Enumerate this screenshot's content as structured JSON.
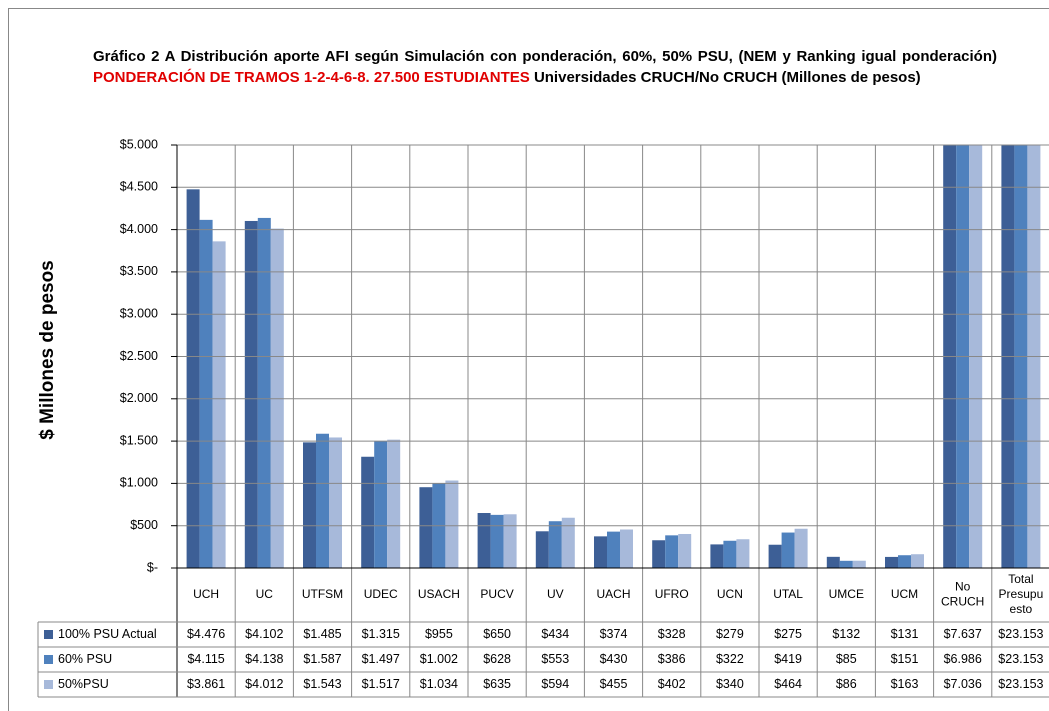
{
  "chart_data": {
    "type": "bar",
    "title": [
      "Gráfico 2 A Distribución aporte AFI según Simulación con ponderación, 60%, 50% PSU, (NEM y Ranking igual ponderación)",
      "PONDERACIÓN DE TRAMOS 1-2-4-6-8. 27.500 ESTUDIANTES",
      "Universidades CRUCH/No CRUCH (Millones de pesos)"
    ],
    "y_label": "$ Millones de pesos",
    "categories": [
      "UCH",
      "UC",
      "UTFSM",
      "UDEC",
      "USACH",
      "PUCV",
      "UV",
      "UACH",
      "UFRO",
      "UCN",
      "UTAL",
      "UMCE",
      "UCM",
      "No CRUCH",
      "Total Presupuesto"
    ],
    "series": [
      {
        "name": "100% PSU Actual",
        "color": "#3d5f96",
        "values": [
          4476,
          4102,
          1485,
          1315,
          955,
          650,
          434,
          374,
          328,
          279,
          275,
          132,
          131,
          7637,
          23153
        ],
        "value_labels": [
          "$4.476",
          "$4.102",
          "$1.485",
          "$1.315",
          "$955",
          "$650",
          "$434",
          "$374",
          "$328",
          "$279",
          "$275",
          "$132",
          "$131",
          "$7.637",
          "$23.153"
        ]
      },
      {
        "name": "60% PSU",
        "color": "#4f81bd",
        "values": [
          4115,
          4138,
          1587,
          1497,
          1002,
          628,
          553,
          430,
          386,
          322,
          419,
          85,
          151,
          6986,
          23153
        ],
        "value_labels": [
          "$4.115",
          "$4.138",
          "$1.587",
          "$1.497",
          "$1.002",
          "$628",
          "$553",
          "$430",
          "$386",
          "$322",
          "$419",
          "$85",
          "$151",
          "$6.986",
          "$23.153"
        ]
      },
      {
        "name": "50%PSU",
        "color": "#a7b9da",
        "values": [
          3861,
          4012,
          1543,
          1517,
          1034,
          635,
          594,
          455,
          402,
          340,
          464,
          86,
          163,
          7036,
          23153
        ],
        "value_labels": [
          "$3.861",
          "$4.012",
          "$1.543",
          "$1.517",
          "$1.034",
          "$635",
          "$594",
          "$455",
          "$402",
          "$340",
          "$464",
          "$86",
          "$163",
          "$7.036",
          "$23.153"
        ]
      }
    ],
    "ylim": [
      0,
      5000
    ],
    "yticks": [
      {
        "value": 0,
        "label": "$-"
      },
      {
        "value": 500,
        "label": "$500"
      },
      {
        "value": 1000,
        "label": "$1.000"
      },
      {
        "value": 1500,
        "label": "$1.500"
      },
      {
        "value": 2000,
        "label": "$2.000"
      },
      {
        "value": 2500,
        "label": "$2.500"
      },
      {
        "value": 3000,
        "label": "$3.000"
      },
      {
        "value": 3500,
        "label": "$3.500"
      },
      {
        "value": 4000,
        "label": "$4.000"
      },
      {
        "value": 4500,
        "label": "$4.500"
      },
      {
        "value": 5000,
        "label": "$5.000"
      }
    ],
    "grid": true
  }
}
